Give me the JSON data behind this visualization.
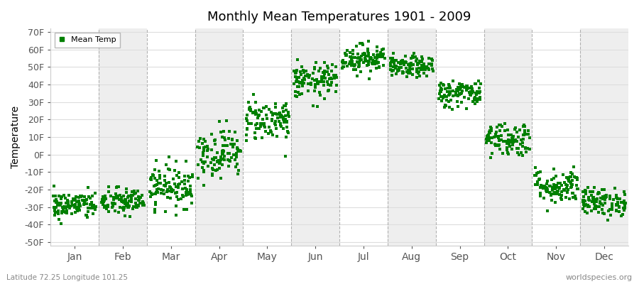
{
  "title": "Monthly Mean Temperatures 1901 - 2009",
  "ylabel": "Temperature",
  "xlabel_labels": [
    "Jan",
    "Feb",
    "Mar",
    "Apr",
    "May",
    "Jun",
    "Jul",
    "Aug",
    "Sep",
    "Oct",
    "Nov",
    "Dec"
  ],
  "ytick_labels": [
    "-50F",
    "-40F",
    "-30F",
    "-20F",
    "-10F",
    "0F",
    "10F",
    "20F",
    "30F",
    "40F",
    "50F",
    "60F",
    "70F"
  ],
  "ytick_values": [
    -50,
    -40,
    -30,
    -20,
    -10,
    0,
    10,
    20,
    30,
    40,
    50,
    60,
    70
  ],
  "ylim": [
    -52,
    72
  ],
  "dot_color": "#008000",
  "dot_size": 5,
  "legend_label": "Mean Temp",
  "subtitle": "Latitude 72.25 Longitude 101.25",
  "watermark": "worldspecies.org",
  "n_years": 109,
  "monthly_means": [
    -29,
    -27,
    -18,
    1,
    20,
    42,
    55,
    50,
    35,
    9,
    -18,
    -27
  ],
  "monthly_stds": [
    4,
    4,
    6,
    7,
    6,
    5,
    4,
    3,
    4,
    5,
    5,
    4
  ],
  "monthly_spread": [
    0.45,
    0.45,
    0.45,
    0.45,
    0.45,
    0.45,
    0.45,
    0.45,
    0.45,
    0.45,
    0.45,
    0.45
  ],
  "bg_colors": [
    "#ffffff",
    "#eeeeee"
  ],
  "grid_color": "#aaaaaa",
  "hgrid_color": "#dddddd"
}
